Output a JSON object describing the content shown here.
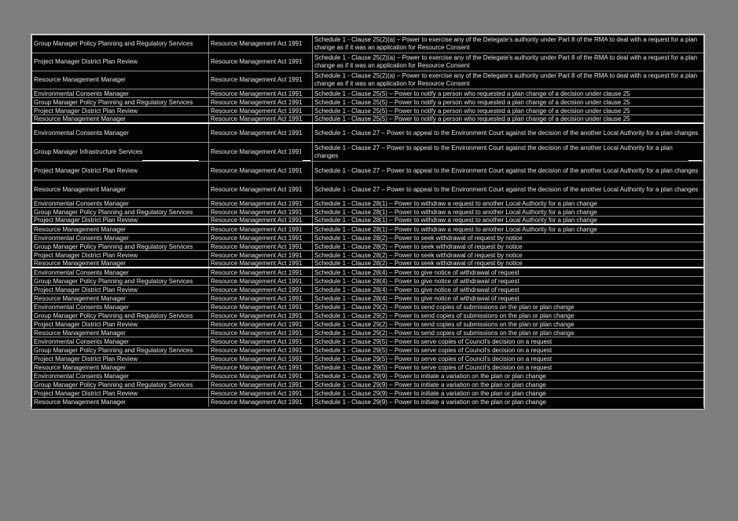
{
  "colors": {
    "page_background": "#7d7d7d",
    "table_background": "#000000",
    "text": "#e6e6e6",
    "gridline": "#8f8f8f",
    "highlight_line": "#f2f2f2"
  },
  "table": {
    "act": "Resource Management Act 1991",
    "clauses": {
      "A": "Schedule 1 - Clause 25(2)(a) – Power to exercise any of the Delegate's authority under Part 8 of the RMA to deal with a request for a plan change as if it was an application for Resource Consent",
      "B": "Schedule 1 - Clause 25(5) – Power to notify a person who requested a plan change of a decision under clause 25",
      "C": "Schedule 1 - Clause 27 – Power to appeal to the Environment Court against the decision of the another Local Authority for a plan changes",
      "D": "Schedule 1 - Clause 28(1) – Power to withdraw a request to another Local Authority for a plan change",
      "E": "Schedule 1 - Clause 28(2) – Power to seek withdrawal of request by notice",
      "F": "Schedule 1 - Clause 28(4) – Power to give notice of withdrawal of request",
      "G": "Schedule 1 - Clause 29(2) – Power to send copies of submissions on the plan or plan change",
      "H": "Schedule 1 - Clause 29(5) – Power to serve copies of Council's decision on a request",
      "I": "Schedule 1 - Clause 29(9) – Power to initiate a variation on the plan or plan change"
    },
    "rows": [
      {
        "role": "Group Manager Policy Planning and Regulatory Services",
        "section": "A"
      },
      {
        "role": "Project Manager District Plan Review",
        "section": "A"
      },
      {
        "role": "Resource Management Manager",
        "section": "A"
      },
      {
        "role": "Environmental Consents Manager",
        "section": "B"
      },
      {
        "role": "Group Manager Policy Planning and Regulatory Services",
        "section": "B"
      },
      {
        "role": "Project Manager District Plan Review",
        "section": "B"
      },
      {
        "role": "Resource Management Manager",
        "section": "B",
        "sep_after": true
      },
      {
        "role": "Environmental Consents Manager",
        "section": "C"
      },
      {
        "role": "Group Manager Infrastructure Services",
        "section": "C",
        "underlined": true
      },
      {
        "role": "Project Manager District Plan Review",
        "section": "C"
      },
      {
        "role": "Resource Management Manager",
        "section": "C"
      },
      {
        "role": "Environmental Consents Manager",
        "section": "D"
      },
      {
        "role": "Group Manager Policy Planning and Regulatory Services",
        "section": "D"
      },
      {
        "role": "Project Manager District Plan Review",
        "section": "D",
        "sep_after": true
      },
      {
        "role": "Resource Management Manager",
        "section": "D"
      },
      {
        "role": "Environmental Consents Manager",
        "section": "E"
      },
      {
        "role": "Group Manager Policy Planning and Regulatory Services",
        "section": "E"
      },
      {
        "role": "Project Manager District Plan Review",
        "section": "E"
      },
      {
        "role": "Resource Management Manager",
        "section": "E",
        "sep_after": true
      },
      {
        "role": "Environmental Consents Manager",
        "section": "F"
      },
      {
        "role": "Group Manager Policy Planning and Regulatory Services",
        "section": "F"
      },
      {
        "role": "Project Manager District Plan Review",
        "section": "F"
      },
      {
        "role": "Resource Management Manager",
        "section": "F"
      },
      {
        "role": "Environmental Consents Manager",
        "section": "G"
      },
      {
        "role": "Group Manager Policy Planning and Regulatory Services",
        "section": "G"
      },
      {
        "role": "Project Manager District Plan Review",
        "section": "G"
      },
      {
        "role": "Resource Management Manager",
        "section": "G"
      },
      {
        "role": "Environmental Consents Manager",
        "section": "H"
      },
      {
        "role": "Group Manager Policy Planning and Regulatory Services",
        "section": "H"
      },
      {
        "role": "Project Manager District Plan Review",
        "section": "H"
      },
      {
        "role": "Resource Management Manager",
        "section": "H"
      },
      {
        "role": "Environmental Consents Manager",
        "section": "I"
      },
      {
        "role": "Group Manager Policy Planning and Regulatory Services",
        "section": "I"
      },
      {
        "role": "Project Manager District Plan Review",
        "section": "I"
      },
      {
        "role": "Resource Management Manager",
        "section": "I"
      }
    ]
  }
}
